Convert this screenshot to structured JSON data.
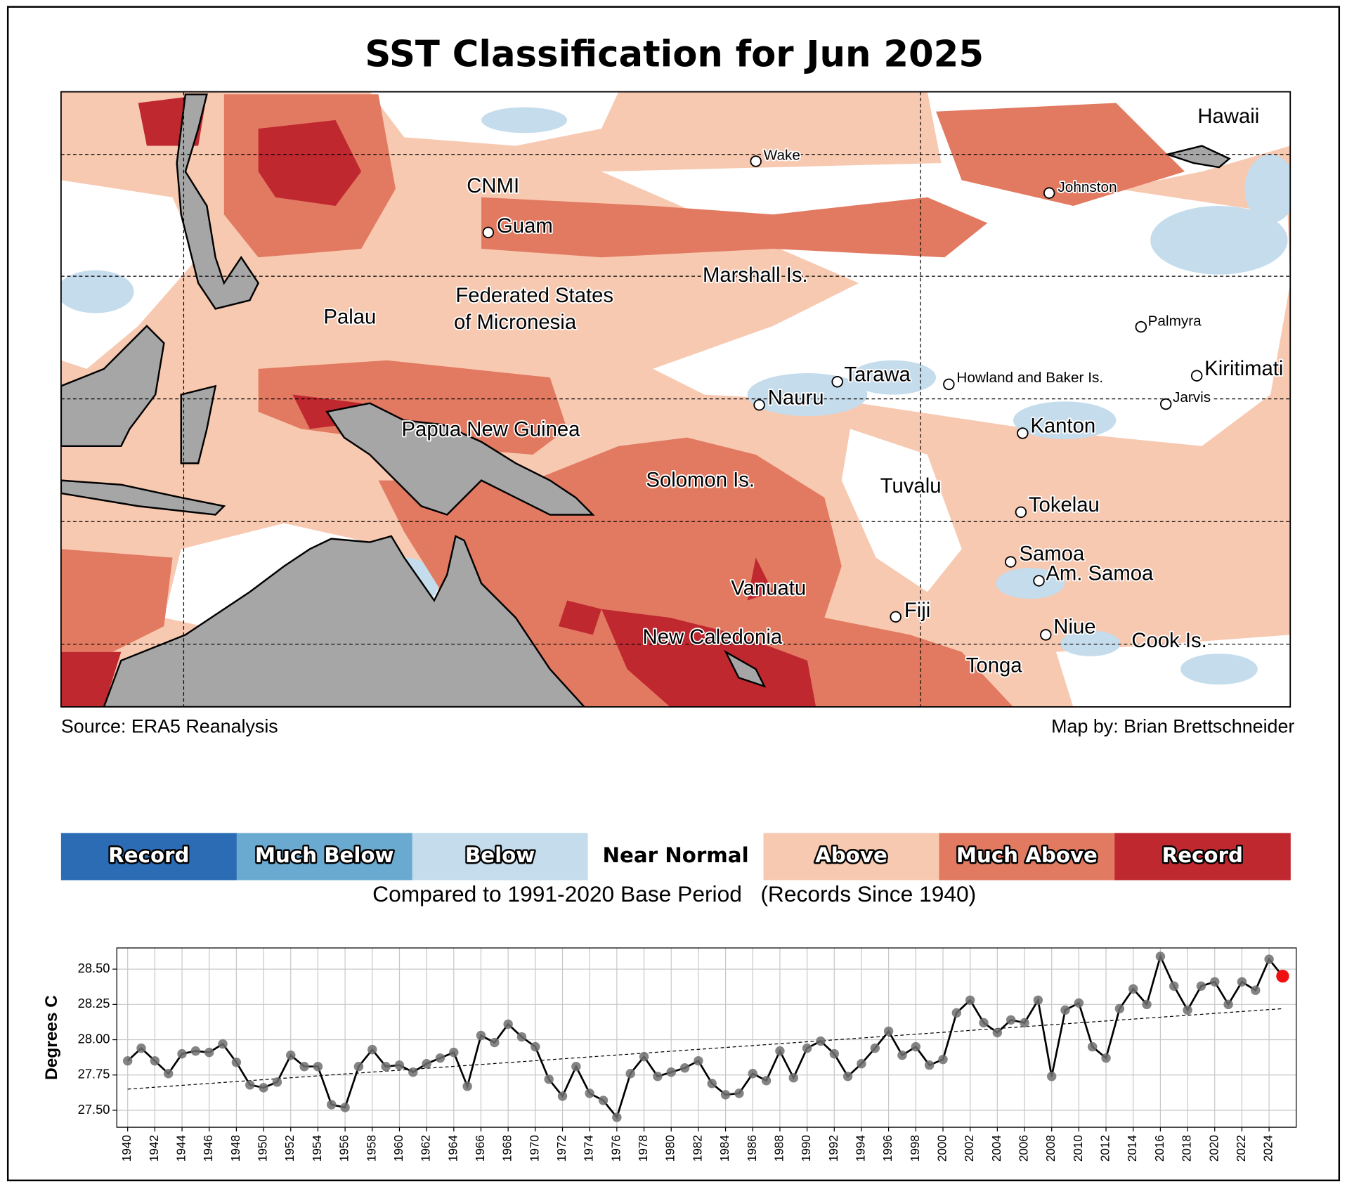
{
  "title": "SST Classification for Jun 2025",
  "map": {
    "labels": [
      "Hawaii",
      "Wake",
      "CNMI",
      "Johnston",
      "Guam",
      "Marshall Is.",
      "Federated States",
      "of Micronesia",
      "Palau",
      "Palmyra",
      "Tarawa",
      "Howland and Baker Is.",
      "Kiritimati",
      "Nauru",
      "Jarvis",
      "Papua New Guinea",
      "Kanton",
      "Solomon Is.",
      "Tuvalu",
      "Tokelau",
      "Samoa",
      "Am. Samoa",
      "Vanuatu",
      "Fiji",
      "New Caledonia",
      "Niue",
      "Cook Is.",
      "Tonga"
    ],
    "source": "Source: ERA5 Reanalysis",
    "credit": "Map by: Brian Brettschneider"
  },
  "legend": {
    "labels": [
      "Record",
      "Much Below",
      "Below",
      "Near Normal",
      "Above",
      "Much Above",
      "Record"
    ],
    "colors": [
      "#2b6cb5",
      "#6aaad0",
      "#c4dcec",
      "#ffffff",
      "#f8c9b1",
      "#e27a62",
      "#c0282f"
    ],
    "caption": "Compared to 1991-2020 Base Period   (Records Since 1940)"
  },
  "chart_data": {
    "type": "line",
    "y_label": "Degrees C",
    "x": [
      1940,
      1941,
      1942,
      1943,
      1944,
      1945,
      1946,
      1947,
      1948,
      1949,
      1950,
      1951,
      1952,
      1953,
      1954,
      1955,
      1956,
      1957,
      1958,
      1959,
      1960,
      1961,
      1962,
      1963,
      1964,
      1965,
      1966,
      1967,
      1968,
      1969,
      1970,
      1971,
      1972,
      1973,
      1974,
      1975,
      1976,
      1977,
      1978,
      1979,
      1980,
      1981,
      1982,
      1983,
      1984,
      1985,
      1986,
      1987,
      1988,
      1989,
      1990,
      1991,
      1992,
      1993,
      1994,
      1995,
      1996,
      1997,
      1998,
      1999,
      2000,
      2001,
      2002,
      2003,
      2004,
      2005,
      2006,
      2007,
      2008,
      2009,
      2010,
      2011,
      2012,
      2013,
      2014,
      2015,
      2016,
      2017,
      2018,
      2019,
      2020,
      2021,
      2022,
      2023,
      2024,
      2025
    ],
    "values": [
      27.85,
      27.94,
      27.85,
      27.76,
      27.9,
      27.92,
      27.91,
      27.97,
      27.84,
      27.68,
      27.66,
      27.7,
      27.89,
      27.81,
      27.81,
      27.54,
      27.52,
      27.81,
      27.93,
      27.81,
      27.82,
      27.77,
      27.83,
      27.87,
      27.91,
      27.67,
      28.03,
      27.98,
      28.11,
      28.02,
      27.95,
      27.72,
      27.6,
      27.81,
      27.62,
      27.57,
      27.45,
      27.76,
      27.88,
      27.74,
      27.77,
      27.8,
      27.85,
      27.69,
      27.61,
      27.62,
      27.76,
      27.71,
      27.92,
      27.73,
      27.94,
      27.99,
      27.9,
      27.74,
      27.83,
      27.94,
      28.06,
      27.89,
      27.95,
      27.82,
      27.86,
      28.19,
      28.28,
      28.12,
      28.05,
      28.14,
      28.12,
      28.28,
      27.74,
      28.21,
      28.26,
      27.95,
      27.87,
      28.22,
      28.36,
      28.25,
      28.59,
      28.38,
      28.21,
      28.38,
      28.41,
      28.25,
      28.41,
      28.35,
      28.57,
      28.45
    ],
    "color": "#000000",
    "marker_color": "#6e6e6e",
    "last_point_color": "#ee1111",
    "trend": {
      "x": [
        1940,
        2025
      ],
      "values": [
        27.65,
        28.22
      ]
    },
    "xlim": [
      1939.2,
      2026
    ],
    "ylim": [
      27.38,
      28.65
    ],
    "xticks": [
      1940,
      1942,
      1944,
      1946,
      1948,
      1950,
      1952,
      1954,
      1956,
      1958,
      1960,
      1962,
      1964,
      1966,
      1968,
      1970,
      1972,
      1974,
      1976,
      1978,
      1980,
      1982,
      1984,
      1986,
      1988,
      1990,
      1992,
      1994,
      1996,
      1998,
      2000,
      2002,
      2004,
      2006,
      2008,
      2010,
      2012,
      2014,
      2016,
      2018,
      2020,
      2022,
      2024
    ],
    "yticks": [
      {
        "value": 27.5,
        "label": "27.50"
      },
      {
        "value": 27.75,
        "label": "27.75"
      },
      {
        "value": 28,
        "label": "28.00"
      },
      {
        "value": 28.25,
        "label": "28.25"
      },
      {
        "value": 28.5,
        "label": "28.50"
      }
    ],
    "grid": true
  }
}
